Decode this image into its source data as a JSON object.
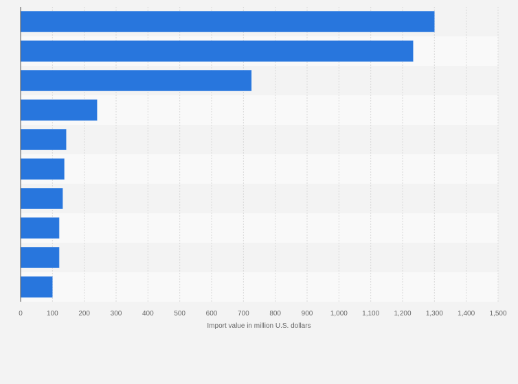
{
  "chart_data": {
    "type": "bar",
    "orientation": "horizontal",
    "title": "",
    "categories": [
      "",
      "",
      "",
      "",
      "",
      "",
      "",
      "",
      "",
      ""
    ],
    "values": [
      1300,
      1233,
      725,
      240,
      143,
      137,
      132,
      121,
      121,
      100
    ],
    "xlabel": "Import value in million U.S. dollars",
    "ylabel": "",
    "xlim": [
      0,
      1500
    ],
    "xticks": [
      0,
      100,
      200,
      300,
      400,
      500,
      600,
      700,
      800,
      900,
      1000,
      1100,
      1200,
      1300,
      1400,
      1500
    ],
    "xtick_labels": [
      "0",
      "100",
      "200",
      "300",
      "400",
      "500",
      "600",
      "700",
      "800",
      "900",
      "1,000",
      "1,100",
      "1,200",
      "1,300",
      "1,400",
      "1,500"
    ],
    "grid": true,
    "bar_color": "#2876dd"
  }
}
